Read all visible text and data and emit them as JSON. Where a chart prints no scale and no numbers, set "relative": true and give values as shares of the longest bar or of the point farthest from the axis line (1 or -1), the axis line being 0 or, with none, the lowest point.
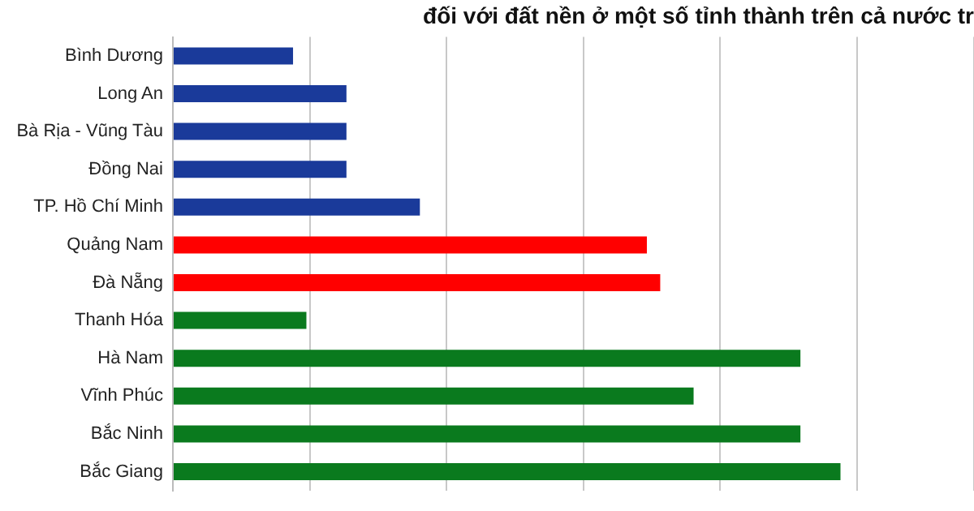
{
  "chart_data": {
    "type": "bar",
    "orientation": "horizontal",
    "relative": true,
    "title": "đối với đất nền ở một số tỉnh thành trên cả nước tr",
    "categories": [
      "Bình Dương",
      "Long An",
      "Bà Rịa - Vũng Tàu",
      "Đồng Nai",
      "TP. Hồ Chí Minh",
      "Quảng Nam",
      "Đà Nẵng",
      "Thanh Hóa",
      "Hà Nam",
      "Vĩnh Phúc",
      "Bắc Ninh",
      "Bắc Giang"
    ],
    "values": [
      0.18,
      0.26,
      0.26,
      0.26,
      0.37,
      0.71,
      0.73,
      0.2,
      0.94,
      0.78,
      0.94,
      1
    ],
    "colors": [
      "#1a3a9a",
      "#1a3a9a",
      "#1a3a9a",
      "#1a3a9a",
      "#1a3a9a",
      "#ff0000",
      "#ff0000",
      "#0a7a1e",
      "#0a7a1e",
      "#0a7a1e",
      "#0a7a1e",
      "#0a7a1e"
    ],
    "grid": "x"
  }
}
